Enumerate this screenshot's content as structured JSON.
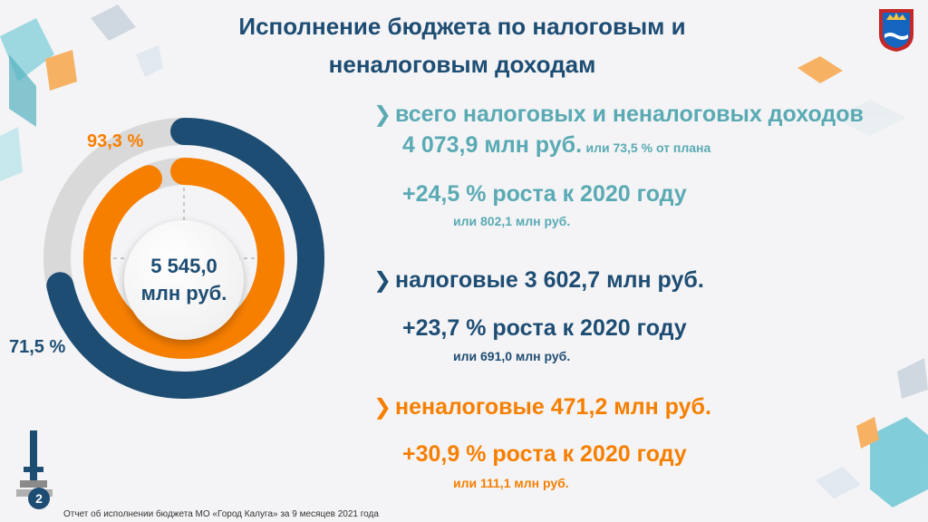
{
  "title": {
    "line1": "Исполнение бюджета по налоговым и",
    "line2": "неналоговым доходам"
  },
  "chart_data": {
    "type": "donut",
    "center_label_line1": "5 545,0",
    "center_label_line2": "млн руб.",
    "series": [
      {
        "label": "93,3 %",
        "value": 93.3,
        "color": "#f77f00"
      },
      {
        "label": "71,5 %",
        "value": 71.5,
        "color": "#1e4d73"
      }
    ],
    "track_color": "#d9d9d9"
  },
  "stats": {
    "total": {
      "line1": "всего налоговых и неналоговых доходов",
      "amount": "4 073,9 млн руб.",
      "plan": "или 73,5 % от плана",
      "growth": "+24,5 % роста к 2020 году",
      "growth_abs": "или 802,1 млн руб."
    },
    "tax": {
      "label": "налоговые 3 602,7 млн руб.",
      "growth": "+23,7 % роста к 2020 году",
      "growth_abs": "или 691,0 млн руб."
    },
    "nontax": {
      "label": "неналоговые 471,2 млн руб.",
      "growth": "+30,9 % роста к 2020 году",
      "growth_abs": "или 111,1 млн руб."
    }
  },
  "footer": {
    "page_number": "2",
    "text": "Отчет об исполнении бюджета МО «Город Калуга» за 9 месяцев 2021 года"
  },
  "colors": {
    "navy": "#1e4d73",
    "orange": "#f77f00",
    "teal": "#5aaab4"
  },
  "icons": {
    "arrow": "chevron-right-icon",
    "crest": "kaluga-crest-icon"
  }
}
